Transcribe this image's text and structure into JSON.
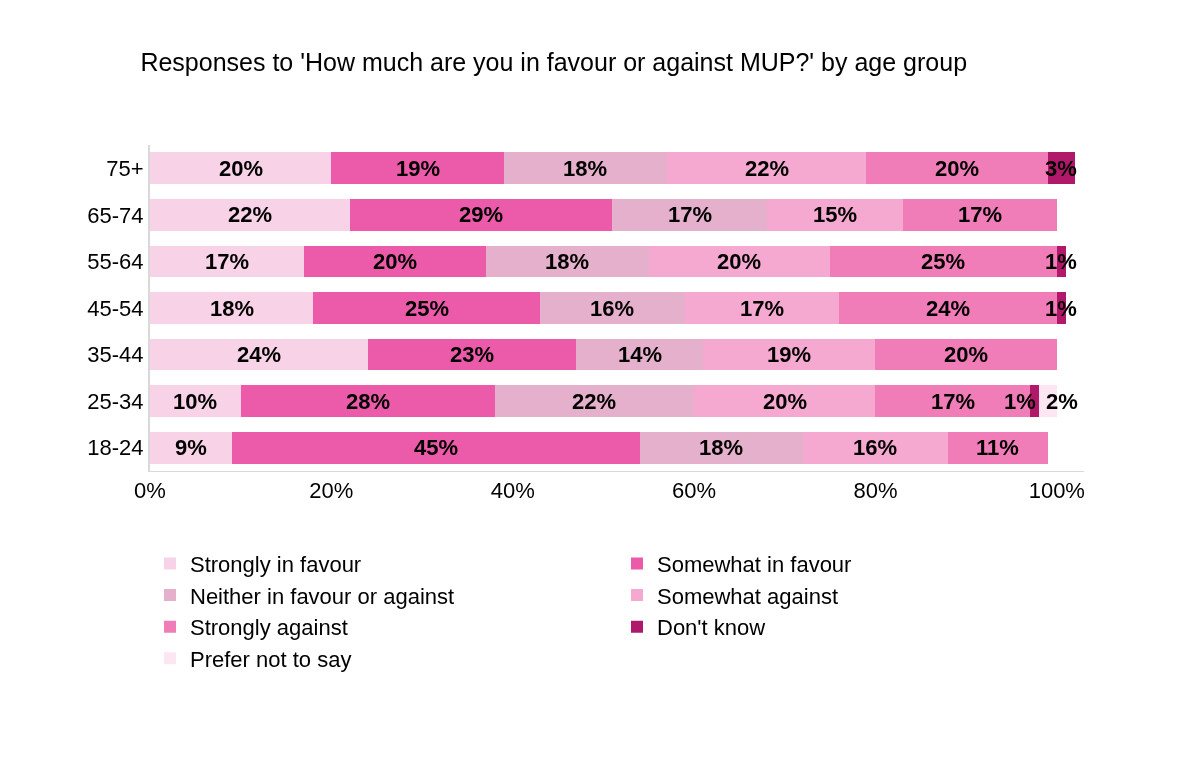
{
  "chart_data": {
    "type": "bar",
    "orientation": "horizontal",
    "stacked": true,
    "title": "Responses to 'How much are you in favour or against MUP?' by age group",
    "categories": [
      "75+",
      "65-74",
      "55-64",
      "45-54",
      "35-44",
      "25-34",
      "18-24"
    ],
    "series": [
      {
        "name": "Strongly in favour",
        "color": "#f8d3e8",
        "values": [
          20,
          22,
          17,
          18,
          24,
          10,
          9
        ],
        "value_labels": [
          "20%",
          "22%",
          "17%",
          "18%",
          "24%",
          "10%",
          "9%"
        ]
      },
      {
        "name": "Somewhat in favour",
        "color": "#ec5aaa",
        "values": [
          19,
          29,
          20,
          25,
          23,
          28,
          45
        ],
        "value_labels": [
          "19%",
          "29%",
          "20%",
          "25%",
          "23%",
          "28%",
          "45%"
        ]
      },
      {
        "name": "Neither in favour or against",
        "color": "#e4b0cc",
        "values": [
          18,
          17,
          18,
          16,
          14,
          22,
          18
        ],
        "value_labels": [
          "18%",
          "17%",
          "18%",
          "16%",
          "14%",
          "22%",
          "18%"
        ]
      },
      {
        "name": "Somewhat against",
        "color": "#f5a8d0",
        "values": [
          22,
          15,
          20,
          17,
          19,
          20,
          16
        ],
        "value_labels": [
          "22%",
          "15%",
          "20%",
          "17%",
          "19%",
          "20%",
          "16%"
        ]
      },
      {
        "name": "Strongly against",
        "color": "#f07cb8",
        "values": [
          20,
          17,
          25,
          24,
          20,
          17,
          11
        ],
        "value_labels": [
          "20%",
          "17%",
          "25%",
          "24%",
          "20%",
          "17%",
          "11%"
        ]
      },
      {
        "name": "Don't know",
        "color": "#b0186a",
        "values": [
          3,
          null,
          1,
          1,
          null,
          1,
          null
        ],
        "value_labels": [
          "3%",
          null,
          "1%",
          "1%",
          null,
          "1%",
          null
        ]
      },
      {
        "name": "Prefer not to say",
        "color": "#fbe6f1",
        "values": [
          null,
          null,
          null,
          null,
          null,
          2,
          null
        ],
        "value_labels": [
          null,
          null,
          null,
          null,
          null,
          "2%",
          null
        ]
      }
    ],
    "xlim": [
      0,
      103
    ],
    "xticks": [
      {
        "value": 0,
        "label": "0%"
      },
      {
        "value": 20,
        "label": "20%"
      },
      {
        "value": 40,
        "label": "40%"
      },
      {
        "value": 60,
        "label": "60%"
      },
      {
        "value": 80,
        "label": "80%"
      },
      {
        "value": 100,
        "label": "100%"
      }
    ],
    "legend": "bottom"
  }
}
